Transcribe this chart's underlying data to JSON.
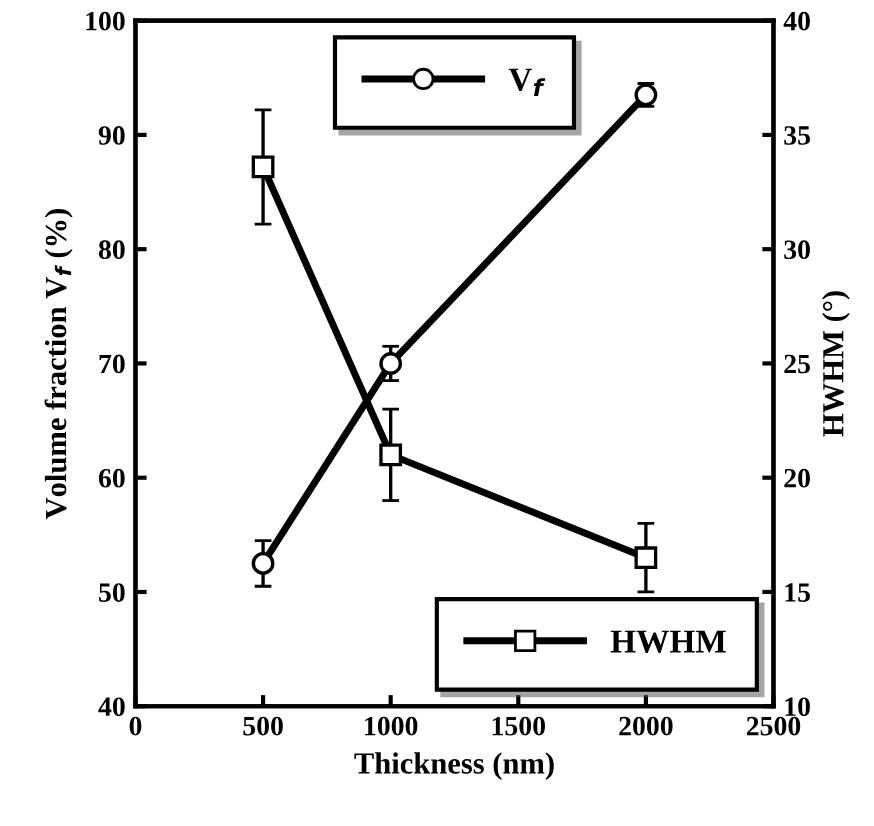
{
  "chart_data": {
    "type": "line",
    "xlabel": "Thickness (nm)",
    "ylabel": "Volume fraction V$_{f}$ (%)",
    "y2label": "HWHM (°)",
    "x": [
      500,
      1000,
      2000
    ],
    "xlim": [
      0,
      2500
    ],
    "xticks": [
      0,
      500,
      1000,
      1500,
      2000,
      2500
    ],
    "ylim": [
      40,
      100
    ],
    "yticks": [
      40,
      50,
      60,
      70,
      80,
      90,
      100
    ],
    "y2lim": [
      10,
      40
    ],
    "y2ticks": [
      10,
      15,
      20,
      25,
      30,
      35,
      40
    ],
    "line_style": "solid",
    "grid": false,
    "legend": "top",
    "series": [
      {
        "name": "V$_{f}$",
        "color": "#000000",
        "values": [
          52.5,
          70,
          93.5
        ],
        "errors": [
          2,
          1.5,
          1
        ],
        "marker": "circle"
      },
      {
        "name": "HWHM",
        "color": "#000000",
        "axis": "y2",
        "values": [
          33.6,
          21,
          16.5
        ],
        "errors": [
          2.5,
          2,
          1.5
        ],
        "marker": "square"
      }
    ]
  }
}
